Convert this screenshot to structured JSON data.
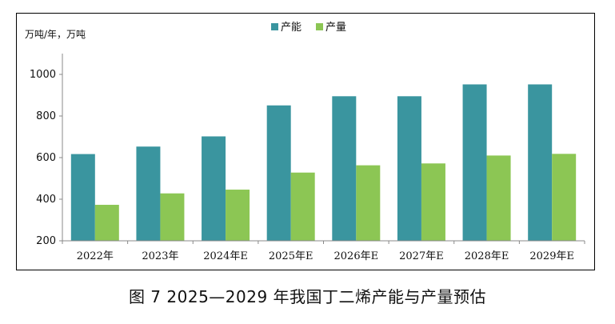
{
  "caption": "图 7 2025—2029 年我国丁二烯产能与产量预估",
  "chart_data": {
    "type": "bar",
    "unit_label": "万吨/年，万吨",
    "categories": [
      "2022年",
      "2023年",
      "2024年E",
      "2025年E",
      "2026年E",
      "2027年E",
      "2028年E",
      "2029年E"
    ],
    "series": [
      {
        "name": "产能",
        "color": "#3A959F",
        "values": [
          617,
          653,
          702,
          851,
          895,
          895,
          952,
          952
        ]
      },
      {
        "name": "产量",
        "color": "#8CC654",
        "values": [
          373,
          428,
          446,
          528,
          563,
          572,
          610,
          618
        ]
      }
    ],
    "ylim": [
      200,
      1100
    ],
    "yticks": [
      200,
      400,
      600,
      800,
      1000
    ],
    "grid": false,
    "legend": "top-center"
  }
}
